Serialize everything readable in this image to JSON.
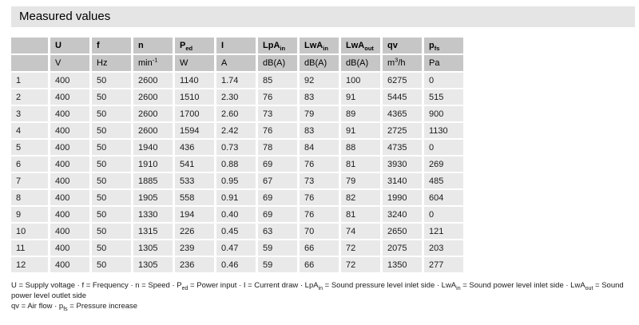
{
  "title": "Measured values",
  "colors": {
    "title_bar": "#e5e5e5",
    "header_cell": "#c6c6c6",
    "row_cell": "#e9e9e9",
    "text": "#111111"
  },
  "table": {
    "headers": [
      {
        "base": ""
      },
      {
        "base": "U"
      },
      {
        "base": "f"
      },
      {
        "base": "n"
      },
      {
        "base": "P",
        "sub": "ed"
      },
      {
        "base": "I"
      },
      {
        "base": "LpA",
        "sub": "in"
      },
      {
        "base": "LwA",
        "sub": "in"
      },
      {
        "base": "LwA",
        "sub": "out"
      },
      {
        "base": "qv"
      },
      {
        "base": "p",
        "sub": "fs"
      }
    ],
    "units": [
      {
        "base": ""
      },
      {
        "base": "V"
      },
      {
        "base": "Hz"
      },
      {
        "base": "min",
        "sup": "-1"
      },
      {
        "base": "W"
      },
      {
        "base": "A"
      },
      {
        "base": "dB(A)"
      },
      {
        "base": "dB(A)"
      },
      {
        "base": "dB(A)"
      },
      {
        "base": "m",
        "sup": "3",
        "rest": "/h"
      },
      {
        "base": "Pa"
      }
    ],
    "rows": [
      {
        "c": [
          "1",
          "400",
          "50",
          "2600",
          "1140",
          "1.74",
          "85",
          "92",
          "100",
          "6275",
          "0"
        ]
      },
      {
        "c": [
          "2",
          "400",
          "50",
          "2600",
          "1510",
          "2.30",
          "76",
          "83",
          "91",
          "5445",
          "515"
        ]
      },
      {
        "c": [
          "3",
          "400",
          "50",
          "2600",
          "1700",
          "2.60",
          "73",
          "79",
          "89",
          "4365",
          "900"
        ]
      },
      {
        "c": [
          "4",
          "400",
          "50",
          "2600",
          "1594",
          "2.42",
          "76",
          "83",
          "91",
          "2725",
          "1130"
        ]
      },
      {
        "c": [
          "5",
          "400",
          "50",
          "1940",
          "436",
          "0.73",
          "78",
          "84",
          "88",
          "4735",
          "0"
        ]
      },
      {
        "c": [
          "6",
          "400",
          "50",
          "1910",
          "541",
          "0.88",
          "69",
          "76",
          "81",
          "3930",
          "269"
        ]
      },
      {
        "c": [
          "7",
          "400",
          "50",
          "1885",
          "533",
          "0.95",
          "67",
          "73",
          "79",
          "3140",
          "485"
        ]
      },
      {
        "c": [
          "8",
          "400",
          "50",
          "1905",
          "558",
          "0.91",
          "69",
          "76",
          "82",
          "1990",
          "604"
        ]
      },
      {
        "c": [
          "9",
          "400",
          "50",
          "1330",
          "194",
          "0.40",
          "69",
          "76",
          "81",
          "3240",
          "0"
        ]
      },
      {
        "c": [
          "10",
          "400",
          "50",
          "1315",
          "226",
          "0.45",
          "63",
          "70",
          "74",
          "2650",
          "121"
        ]
      },
      {
        "c": [
          "11",
          "400",
          "50",
          "1305",
          "239",
          "0.47",
          "59",
          "66",
          "72",
          "2075",
          "203"
        ]
      },
      {
        "c": [
          "12",
          "400",
          "50",
          "1305",
          "236",
          "0.46",
          "59",
          "66",
          "72",
          "1350",
          "277"
        ]
      }
    ]
  },
  "footnote": {
    "line1_segments": [
      {
        "t": "U = Supply voltage · f = Frequency · n = Speed · P"
      },
      {
        "sub": "ed"
      },
      {
        "t": " = Power input · I = Current draw · LpA"
      },
      {
        "sub": "in"
      },
      {
        "t": " = Sound pressure level inlet side · LwA"
      },
      {
        "sub": "in"
      },
      {
        "t": " = Sound power level inlet side · LwA"
      },
      {
        "sub": "out"
      },
      {
        "t": " = Sound power level outlet side"
      }
    ],
    "line2_segments": [
      {
        "t": "qv = Air flow · p"
      },
      {
        "sub": "fs"
      },
      {
        "t": " = Pressure increase"
      }
    ]
  }
}
